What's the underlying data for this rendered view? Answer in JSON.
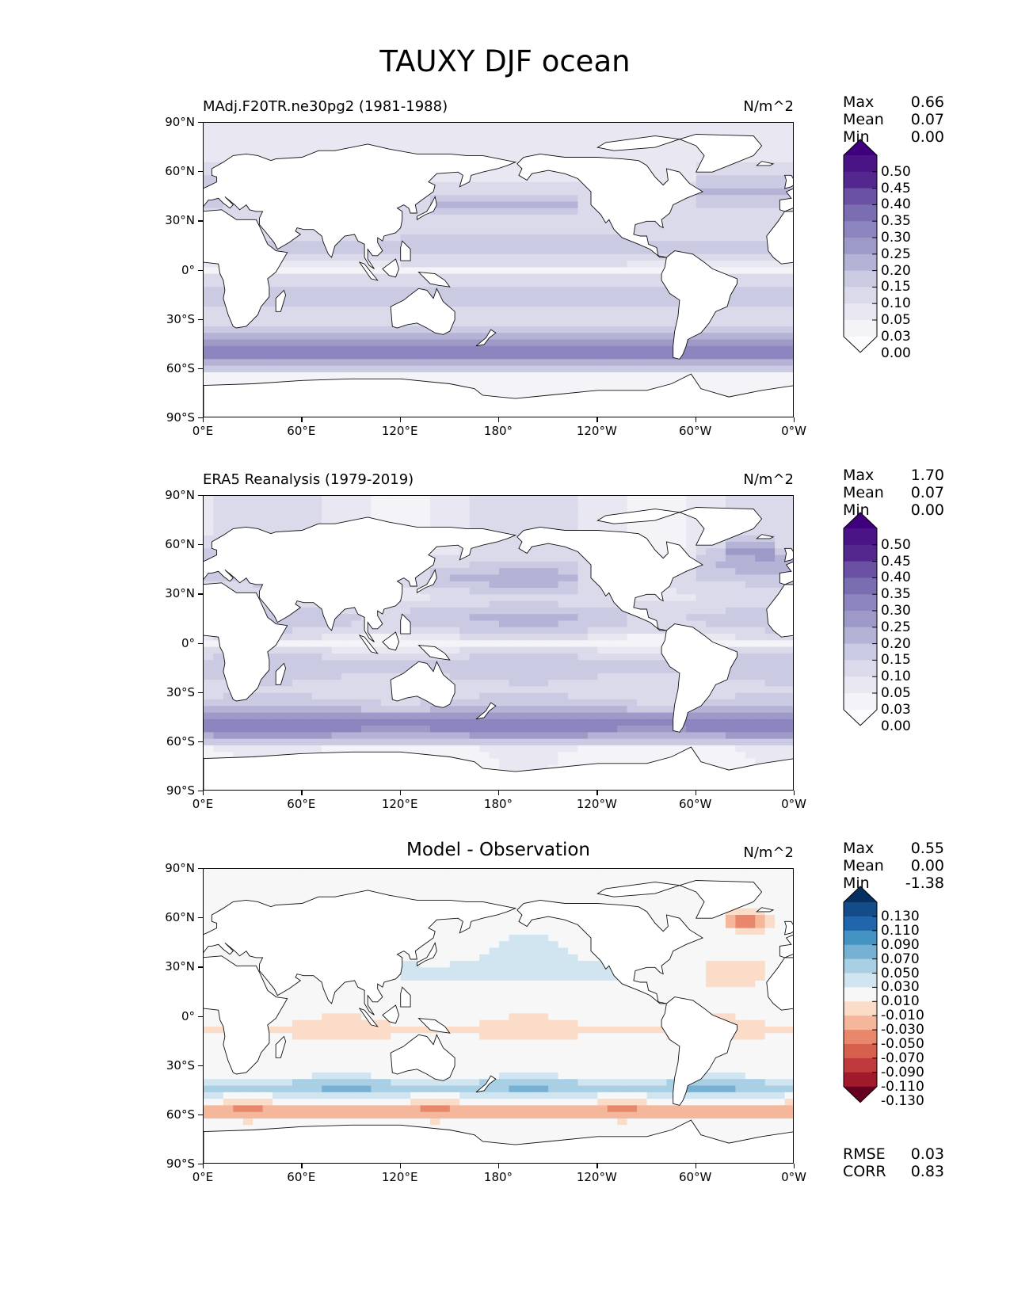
{
  "figure": {
    "title": "TAUXY DJF ocean"
  },
  "axes": {
    "lat_ticks": [
      "90°N",
      "60°N",
      "30°N",
      "0°",
      "30°S",
      "60°S",
      "90°S"
    ],
    "lon_ticks": [
      "0°E",
      "60°E",
      "120°E",
      "180°",
      "120°W",
      "60°W",
      "0°W"
    ]
  },
  "panels": [
    {
      "title": "MAdj.F20TR.ne30pg2 (1981-1988)",
      "units": "N/m^2",
      "stats": [
        {
          "label": "Max",
          "value": "0.66"
        },
        {
          "label": "Mean",
          "value": "0.07"
        },
        {
          "label": "Min",
          "value": "0.00"
        }
      ],
      "colorbar": {
        "labels": [
          "0.50",
          "0.45",
          "0.40",
          "0.35",
          "0.30",
          "0.25",
          "0.20",
          "0.15",
          "0.10",
          "0.05",
          "0.03",
          "0.00"
        ],
        "colors": [
          "#3f007d",
          "#4a1486",
          "#54278f",
          "#6a51a3",
          "#7b6db1",
          "#8c85c0",
          "#9e9ac8",
          "#b4b3d6",
          "#cbcae3",
          "#dadaeb",
          "#e9e8f2",
          "#f4f3f8",
          "#fcfbfd"
        ]
      }
    },
    {
      "title": "ERA5 Reanalysis (1979-2019)",
      "units": "N/m^2",
      "stats": [
        {
          "label": "Max",
          "value": "1.70"
        },
        {
          "label": "Mean",
          "value": "0.07"
        },
        {
          "label": "Min",
          "value": "0.00"
        }
      ],
      "colorbar": {
        "labels": [
          "0.50",
          "0.45",
          "0.40",
          "0.35",
          "0.30",
          "0.25",
          "0.20",
          "0.15",
          "0.10",
          "0.05",
          "0.03",
          "0.00"
        ],
        "colors": [
          "#3f007d",
          "#4a1486",
          "#54278f",
          "#6a51a3",
          "#7b6db1",
          "#8c85c0",
          "#9e9ac8",
          "#b4b3d6",
          "#cbcae3",
          "#dadaeb",
          "#e9e8f2",
          "#f4f3f8",
          "#fcfbfd"
        ]
      }
    },
    {
      "title": "Model - Observation",
      "units": "N/m^2",
      "stats": [
        {
          "label": "Max",
          "value": "0.55"
        },
        {
          "label": "Mean",
          "value": "0.00"
        },
        {
          "label": "Min",
          "value": "-1.38"
        }
      ],
      "extra_stats": [
        {
          "label": "RMSE",
          "value": "0.03"
        },
        {
          "label": "CORR",
          "value": "0.83"
        }
      ],
      "colorbar": {
        "labels": [
          "0.130",
          "0.110",
          "0.090",
          "0.070",
          "0.050",
          "0.030",
          "0.010",
          "-0.010",
          "-0.030",
          "-0.050",
          "-0.070",
          "-0.090",
          "-0.110",
          "-0.130"
        ],
        "colors": [
          "#053061",
          "#124d8a",
          "#2166ac",
          "#4393c3",
          "#76b1d4",
          "#a9cfe5",
          "#d1e5f0",
          "#f7f7f7",
          "#fbdcc9",
          "#f4b79c",
          "#e8876b",
          "#d6604d",
          "#be3a3c",
          "#a01a2b",
          "#67001f"
        ]
      }
    }
  ],
  "chart_data": [
    {
      "type": "heatmap",
      "title": "MAdj.F20TR.ne30pg2 (1981-1988)",
      "variable": "TAUXY DJF ocean",
      "units": "N/m^2",
      "xlim": [
        0,
        360
      ],
      "ylim": [
        -90,
        90
      ],
      "max": 0.66,
      "mean": 0.07,
      "min": 0.0,
      "levels": [
        0.0,
        0.03,
        0.05,
        0.1,
        0.15,
        0.2,
        0.25,
        0.3,
        0.35,
        0.4,
        0.45,
        0.5
      ]
    },
    {
      "type": "heatmap",
      "title": "ERA5 Reanalysis (1979-2019)",
      "variable": "TAUXY DJF ocean",
      "units": "N/m^2",
      "xlim": [
        0,
        360
      ],
      "ylim": [
        -90,
        90
      ],
      "max": 1.7,
      "mean": 0.07,
      "min": 0.0,
      "levels": [
        0.0,
        0.03,
        0.05,
        0.1,
        0.15,
        0.2,
        0.25,
        0.3,
        0.35,
        0.4,
        0.45,
        0.5
      ]
    },
    {
      "type": "heatmap",
      "title": "Model - Observation",
      "variable": "TAUXY DJF ocean",
      "units": "N/m^2",
      "xlim": [
        0,
        360
      ],
      "ylim": [
        -90,
        90
      ],
      "max": 0.55,
      "mean": 0.0,
      "min": -1.38,
      "rmse": 0.03,
      "corr": 0.83,
      "levels": [
        -0.13,
        -0.11,
        -0.09,
        -0.07,
        -0.05,
        -0.03,
        -0.01,
        0.01,
        0.03,
        0.05,
        0.07,
        0.09,
        0.11,
        0.13
      ]
    }
  ]
}
